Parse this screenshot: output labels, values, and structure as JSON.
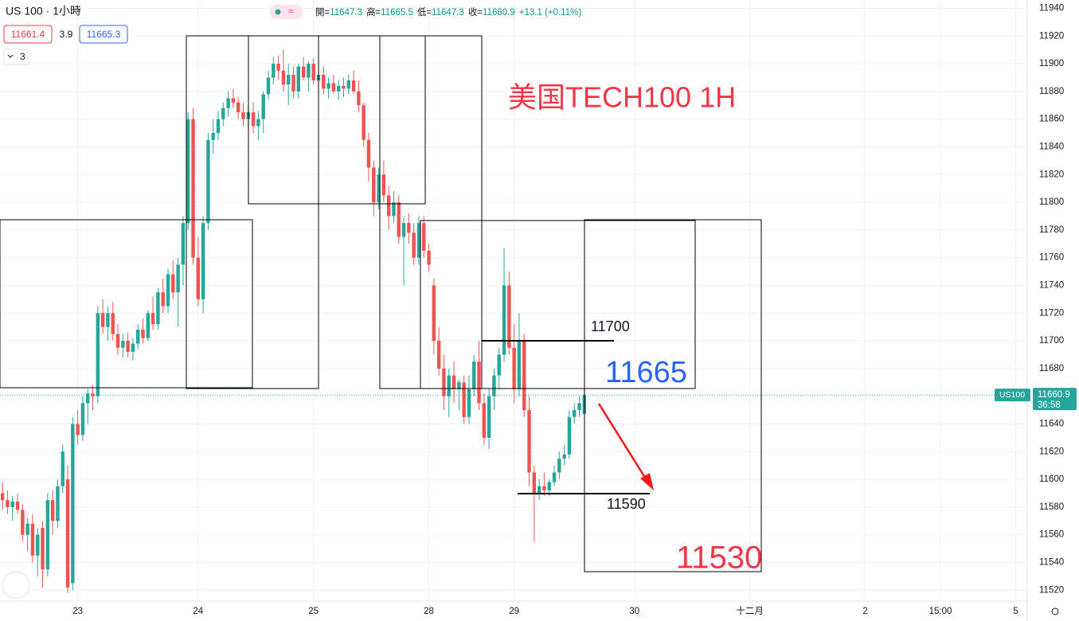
{
  "header": {
    "symbol": "US 100 · 1小時",
    "bid": "11661.4",
    "spread": "3.9",
    "ask": "11665.3",
    "indicators": "3",
    "ohlc_legend": [
      {
        "label": "開=",
        "value": 11647.3
      },
      {
        "label": "高=",
        "value": 11665.5
      },
      {
        "label": "低=",
        "value": 11647.3
      },
      {
        "label": "收=",
        "value": 11660.9
      }
    ],
    "change": "+13.1 (+0.11%)"
  },
  "chart_data": {
    "type": "candlestick",
    "up_color": "#26a69a",
    "down_color": "#ef5350",
    "grid": true,
    "ylim": [
      11515,
      11946
    ],
    "yticks": [
      11520,
      11540,
      11560,
      11580,
      11600,
      11620,
      11640,
      11660,
      11680,
      11700,
      11720,
      11740,
      11760,
      11780,
      11800,
      11820,
      11840,
      11860,
      11880,
      11900,
      11920,
      11940
    ],
    "xlim": [
      -0.5,
      204.3
    ],
    "xticks": [
      {
        "value": 15,
        "label": "23"
      },
      {
        "value": 39,
        "label": "24"
      },
      {
        "value": 62,
        "label": "25"
      },
      {
        "value": 85,
        "label": "28"
      },
      {
        "value": 102,
        "label": "29"
      },
      {
        "value": 126,
        "label": "30"
      },
      {
        "value": 149,
        "label": "十二月"
      },
      {
        "value": 172,
        "label": "2"
      },
      {
        "value": 187,
        "label": "15:00"
      },
      {
        "value": 202,
        "label": "5"
      }
    ],
    "last_price": 11660.9,
    "symbol_tag": "US100",
    "countdown": "36:58",
    "annotations": [
      "美国TECH100 1H",
      "11700",
      "11665",
      "11590",
      "11530"
    ],
    "ohlc": [
      [
        11590,
        11598,
        11578,
        11585
      ],
      [
        11585,
        11592,
        11575,
        11580
      ],
      [
        11580,
        11588,
        11570,
        11584
      ],
      [
        11584,
        11590,
        11575,
        11578
      ],
      [
        11578,
        11582,
        11555,
        11560
      ],
      [
        11560,
        11572,
        11548,
        11568
      ],
      [
        11568,
        11575,
        11540,
        11545
      ],
      [
        11545,
        11565,
        11530,
        11560
      ],
      [
        11565,
        11570,
        11522,
        11535
      ],
      [
        11535,
        11590,
        11530,
        11585
      ],
      [
        11585,
        11592,
        11560,
        11570
      ],
      [
        11570,
        11600,
        11565,
        11595
      ],
      [
        11595,
        11625,
        11590,
        11620
      ],
      [
        11600,
        11610,
        11518,
        11522
      ],
      [
        11525,
        11645,
        11520,
        11640
      ],
      [
        11640,
        11650,
        11625,
        11632
      ],
      [
        11632,
        11660,
        11628,
        11655
      ],
      [
        11655,
        11665,
        11640,
        11662
      ],
      [
        11662,
        11668,
        11650,
        11660
      ],
      [
        11660,
        11725,
        11655,
        11720
      ],
      [
        11720,
        11730,
        11705,
        11710
      ],
      [
        11710,
        11725,
        11700,
        11720
      ],
      [
        11720,
        11728,
        11700,
        11705
      ],
      [
        11705,
        11712,
        11690,
        11695
      ],
      [
        11695,
        11705,
        11688,
        11700
      ],
      [
        11700,
        11706,
        11688,
        11692
      ],
      [
        11692,
        11702,
        11686,
        11698
      ],
      [
        11698,
        11712,
        11694,
        11708
      ],
      [
        11708,
        11716,
        11698,
        11702
      ],
      [
        11702,
        11722,
        11700,
        11720
      ],
      [
        11720,
        11732,
        11708,
        11712
      ],
      [
        11712,
        11738,
        11708,
        11735
      ],
      [
        11735,
        11745,
        11720,
        11725
      ],
      [
        11725,
        11752,
        11720,
        11748
      ],
      [
        11748,
        11758,
        11730,
        11735
      ],
      [
        11735,
        11760,
        11710,
        11755
      ],
      [
        11755,
        11790,
        11740,
        11785
      ],
      [
        11785,
        11865,
        11780,
        11860
      ],
      [
        11860,
        11868,
        11755,
        11760
      ],
      [
        11760,
        11775,
        11725,
        11730
      ],
      [
        11730,
        11790,
        11720,
        11785
      ],
      [
        11785,
        11850,
        11780,
        11845
      ],
      [
        11845,
        11860,
        11835,
        11850
      ],
      [
        11850,
        11866,
        11845,
        11860
      ],
      [
        11860,
        11872,
        11855,
        11868
      ],
      [
        11868,
        11880,
        11862,
        11875
      ],
      [
        11875,
        11882,
        11868,
        11872
      ],
      [
        11872,
        11876,
        11860,
        11865
      ],
      [
        11865,
        11872,
        11855,
        11860
      ],
      [
        11860,
        11870,
        11852,
        11865
      ],
      [
        11865,
        11872,
        11850,
        11855
      ],
      [
        11855,
        11866,
        11845,
        11860
      ],
      [
        11860,
        11880,
        11850,
        11878
      ],
      [
        11878,
        11895,
        11874,
        11890
      ],
      [
        11890,
        11905,
        11885,
        11900
      ],
      [
        11900,
        11906,
        11888,
        11895
      ],
      [
        11895,
        11910,
        11880,
        11885
      ],
      [
        11885,
        11900,
        11870,
        11892
      ],
      [
        11892,
        11898,
        11875,
        11880
      ],
      [
        11880,
        11900,
        11875,
        11898
      ],
      [
        11898,
        11905,
        11888,
        11890
      ],
      [
        11890,
        11902,
        11880,
        11900
      ],
      [
        11900,
        11904,
        11885,
        11888
      ],
      [
        11888,
        11896,
        11880,
        11892
      ],
      [
        11892,
        11898,
        11878,
        11882
      ],
      [
        11882,
        11890,
        11875,
        11886
      ],
      [
        11886,
        11892,
        11878,
        11880
      ],
      [
        11880,
        11888,
        11874,
        11884
      ],
      [
        11884,
        11890,
        11876,
        11882
      ],
      [
        11882,
        11892,
        11878,
        11888
      ],
      [
        11888,
        11895,
        11878,
        11880
      ],
      [
        11880,
        11888,
        11865,
        11870
      ],
      [
        11870,
        11872,
        11840,
        11845
      ],
      [
        11845,
        11850,
        11815,
        11825
      ],
      [
        11825,
        11830,
        11790,
        11800
      ],
      [
        11800,
        11825,
        11795,
        11820
      ],
      [
        11820,
        11830,
        11800,
        11805
      ],
      [
        11805,
        11812,
        11780,
        11790
      ],
      [
        11790,
        11808,
        11785,
        11800
      ],
      [
        11800,
        11805,
        11770,
        11775
      ],
      [
        11775,
        11790,
        11740,
        11785
      ],
      [
        11785,
        11792,
        11770,
        11778
      ],
      [
        11778,
        11785,
        11755,
        11760
      ],
      [
        11760,
        11790,
        11755,
        11785
      ],
      [
        11785,
        11790,
        11760,
        11765
      ],
      [
        11765,
        11770,
        11750,
        11755
      ],
      [
        11740,
        11745,
        11690,
        11700
      ],
      [
        11700,
        11710,
        11675,
        11680
      ],
      [
        11680,
        11690,
        11650,
        11660
      ],
      [
        11660,
        11680,
        11645,
        11675
      ],
      [
        11675,
        11685,
        11655,
        11665
      ],
      [
        11665,
        11672,
        11650,
        11670
      ],
      [
        11670,
        11675,
        11640,
        11645
      ],
      [
        11645,
        11675,
        11640,
        11665
      ],
      [
        11665,
        11690,
        11660,
        11685
      ],
      [
        11685,
        11700,
        11650,
        11655
      ],
      [
        11655,
        11662,
        11625,
        11630
      ],
      [
        11630,
        11665,
        11622,
        11660
      ],
      [
        11660,
        11680,
        11650,
        11675
      ],
      [
        11675,
        11695,
        11665,
        11690
      ],
      [
        11690,
        11767,
        11685,
        11740
      ],
      [
        11740,
        11750,
        11690,
        11695
      ],
      [
        11695,
        11712,
        11655,
        11665
      ],
      [
        11665,
        11720,
        11660,
        11700
      ],
      [
        11700,
        11705,
        11645,
        11650
      ],
      [
        11650,
        11660,
        11595,
        11605
      ],
      [
        11605,
        11610,
        11555,
        11590
      ],
      [
        11590,
        11600,
        11585,
        11595
      ],
      [
        11595,
        11605,
        11588,
        11592
      ],
      [
        11592,
        11600,
        11588,
        11598
      ],
      [
        11598,
        11610,
        11595,
        11605
      ],
      [
        11605,
        11620,
        11600,
        11615
      ],
      [
        11615,
        11625,
        11610,
        11618
      ],
      [
        11618,
        11650,
        11615,
        11645
      ],
      [
        11645,
        11655,
        11640,
        11650
      ],
      [
        11650,
        11660,
        11645,
        11655
      ],
      [
        11647.3,
        11665.5,
        11647.3,
        11660.9
      ]
    ]
  }
}
